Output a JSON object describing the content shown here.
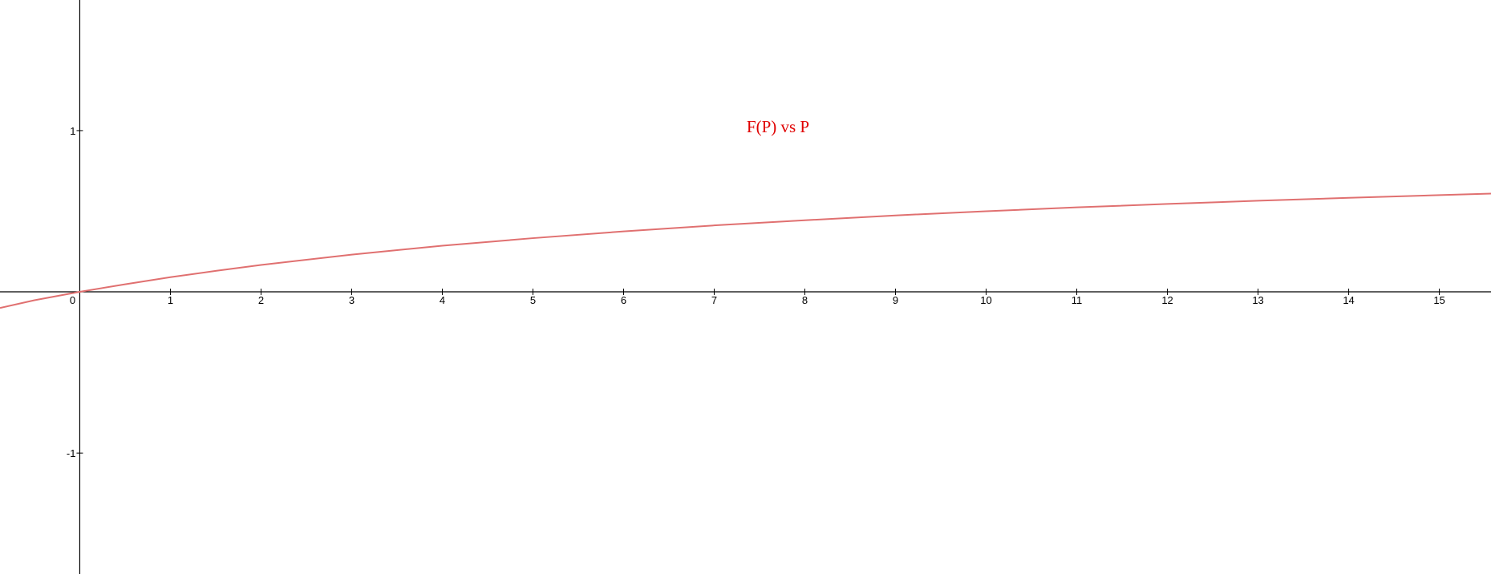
{
  "chart_data": {
    "type": "line",
    "title": "F(P) vs P",
    "xlabel": "",
    "ylabel": "",
    "xlim": [
      -0.88,
      15.57
    ],
    "ylim": [
      -1.75,
      1.81
    ],
    "grid": false,
    "x_ticks": [
      "0",
      "1",
      "2",
      "3",
      "4",
      "5",
      "6",
      "7",
      "8",
      "9",
      "10",
      "11",
      "12",
      "13",
      "14",
      "15"
    ],
    "y_ticks": [
      "1",
      "-1"
    ],
    "series": [
      {
        "color": "#e07070",
        "x": [
          -0.88,
          -0.5,
          0,
          0.5,
          1,
          1.5,
          2,
          3,
          4,
          5,
          6,
          7,
          8,
          9,
          10,
          11,
          12,
          13,
          14,
          15,
          15.57
        ],
        "y": [
          -0.1,
          -0.052,
          0,
          0.047,
          0.091,
          0.13,
          0.167,
          0.231,
          0.286,
          0.333,
          0.375,
          0.412,
          0.444,
          0.474,
          0.5,
          0.524,
          0.545,
          0.565,
          0.583,
          0.6,
          0.609
        ]
      }
    ]
  },
  "colors": {
    "axis": "#000000",
    "title": "#e00000",
    "curve": "#e07070",
    "background": "#ffffff"
  }
}
